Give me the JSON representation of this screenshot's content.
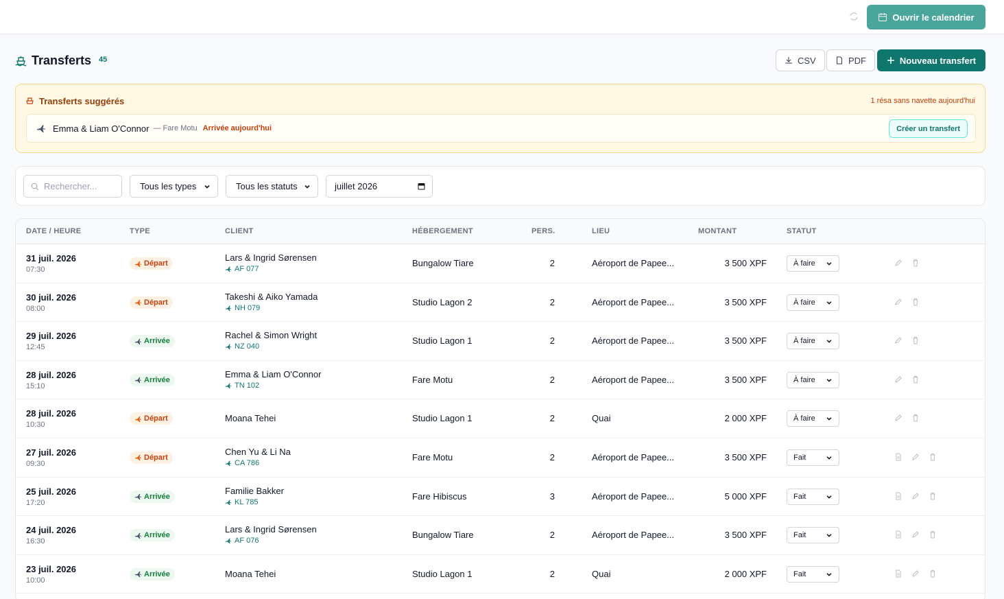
{
  "topbar": {
    "calendar_button": "Ouvrir le calendrier"
  },
  "header": {
    "title": "Transferts",
    "count": 45,
    "csv": "CSV",
    "pdf": "PDF",
    "new": "Nouveau transfert"
  },
  "suggestions": {
    "title": "Transferts suggérés",
    "note": "1 résa sans navette aujourd'hui",
    "items": [
      {
        "client": "Emma & Liam O'Connor",
        "place": "— Fare Motu",
        "tag": "Arrivée aujourd'hui",
        "action": "Créer un transfert"
      }
    ]
  },
  "filters": {
    "search_placeholder": "Rechercher...",
    "type": "Tous les types",
    "status": "Tous les statuts",
    "month": "juillet 2026"
  },
  "table": {
    "columns": [
      "DATE / HEURE",
      "TYPE",
      "CLIENT",
      "HÉBERGEMENT",
      "PERS.",
      "LIEU",
      "MONTANT",
      "STATUT"
    ],
    "types": [
      "Départ",
      "Arrivée"
    ],
    "status_options": [
      "À faire",
      "Fait"
    ],
    "rows": [
      {
        "date": "31 juil. 2026",
        "time": "07:30",
        "type": "Départ",
        "client": "Lars & Ingrid Sørensen",
        "flight": "AF 077",
        "lodging": "Bungalow Tiare",
        "pers": 2,
        "place": "Aéroport de Papee...",
        "amount": "3 500 XPF",
        "status": "À faire"
      },
      {
        "date": "30 juil. 2026",
        "time": "08:00",
        "type": "Départ",
        "client": "Takeshi & Aiko Yamada",
        "flight": "NH 079",
        "lodging": "Studio Lagon 2",
        "pers": 2,
        "place": "Aéroport de Papee...",
        "amount": "3 500 XPF",
        "status": "À faire"
      },
      {
        "date": "29 juil. 2026",
        "time": "12:45",
        "type": "Arrivée",
        "client": "Rachel & Simon Wright",
        "flight": "NZ 040",
        "lodging": "Studio Lagon 1",
        "pers": 2,
        "place": "Aéroport de Papee...",
        "amount": "3 500 XPF",
        "status": "À faire"
      },
      {
        "date": "28 juil. 2026",
        "time": "15:10",
        "type": "Arrivée",
        "client": "Emma & Liam O'Connor",
        "flight": "TN 102",
        "lodging": "Fare Motu",
        "pers": 2,
        "place": "Aéroport de Papee...",
        "amount": "3 500 XPF",
        "status": "À faire"
      },
      {
        "date": "28 juil. 2026",
        "time": "10:30",
        "type": "Départ",
        "client": "Moana Tehei",
        "lodging": "Studio Lagon 1",
        "pers": 2,
        "place": "Quai",
        "amount": "2 000 XPF",
        "status": "À faire"
      },
      {
        "date": "27 juil. 2026",
        "time": "09:30",
        "type": "Départ",
        "client": "Chen Yu & Li Na",
        "flight": "CA 786",
        "lodging": "Fare Motu",
        "pers": 2,
        "place": "Aéroport de Papee...",
        "amount": "3 500 XPF",
        "status": "Fait"
      },
      {
        "date": "25 juil. 2026",
        "time": "17:20",
        "type": "Arrivée",
        "client": "Familie Bakker",
        "flight": "KL 785",
        "lodging": "Fare Hibiscus",
        "pers": 3,
        "place": "Aéroport de Papee...",
        "amount": "5 000 XPF",
        "status": "Fait"
      },
      {
        "date": "24 juil. 2026",
        "time": "16:30",
        "type": "Arrivée",
        "client": "Lars & Ingrid Sørensen",
        "flight": "AF 076",
        "lodging": "Bungalow Tiare",
        "pers": 2,
        "place": "Aéroport de Papee...",
        "amount": "3 500 XPF",
        "status": "Fait"
      },
      {
        "date": "23 juil. 2026",
        "time": "10:00",
        "type": "Arrivée",
        "client": "Moana Tehei",
        "lodging": "Studio Lagon 1",
        "pers": 2,
        "place": "Quai",
        "amount": "2 000 XPF",
        "status": "Fait"
      }
    ]
  }
}
